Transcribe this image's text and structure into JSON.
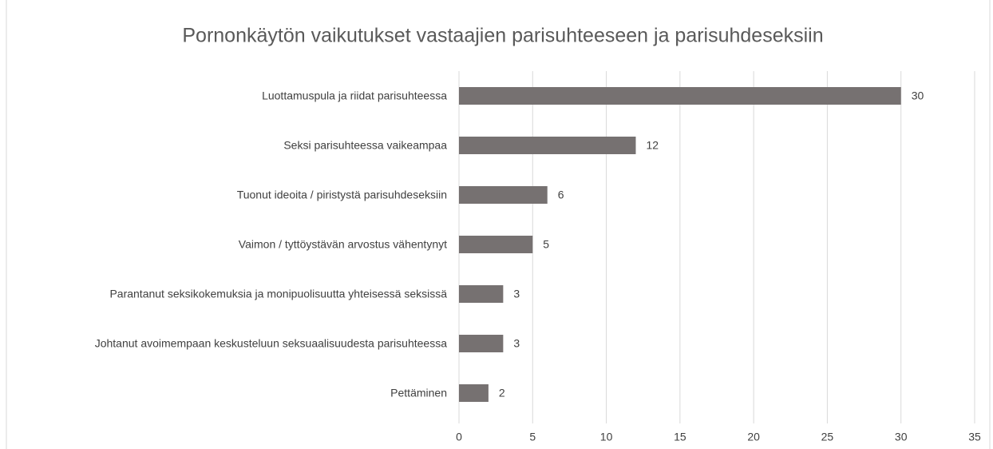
{
  "chart_data": {
    "type": "bar",
    "orientation": "horizontal",
    "title": "Pornonkäytön vaikutukset vastaajien parisuhteeseen ja parisuhdeseksiin",
    "categories": [
      "Luottamuspula ja riidat parisuhteessa",
      "Seksi parisuhteessa vaikeampaa",
      "Tuonut ideoita / piristystä parisuhdeseksiin",
      "Vaimon / tyttöystävän arvostus vähentynyt",
      "Parantanut seksikokemuksia ja monipuolisuutta yhteisessä seksissä",
      "Johtanut avoimempaan keskusteluun seksuaalisuudesta parisuhteessa",
      "Pettäminen"
    ],
    "values": [
      30,
      12,
      6,
      5,
      3,
      3,
      2
    ],
    "color": "#767171",
    "xlim": [
      0,
      35
    ],
    "xticks": [
      0,
      5,
      10,
      15,
      20,
      25,
      30,
      35
    ],
    "grid": true
  }
}
